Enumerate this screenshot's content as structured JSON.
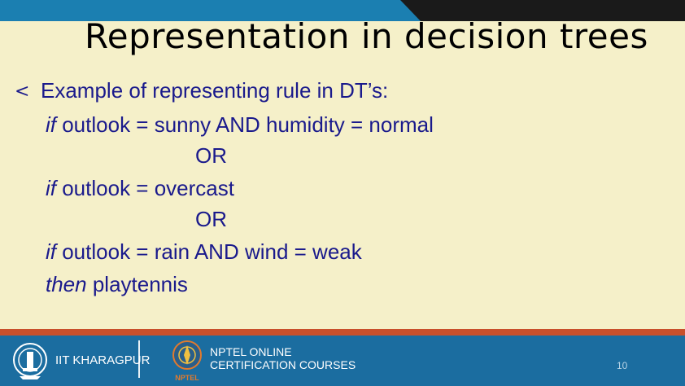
{
  "slide": {
    "title": "Representation in decision trees",
    "bullet_symbol": "<",
    "intro": "Example of representing rule in DT’s:",
    "lines": [
      {
        "prefix": "if",
        "text": " outlook = sunny AND humidity = normal"
      },
      {
        "prefix": "",
        "text": "OR"
      },
      {
        "prefix": "if",
        "text": " outlook = overcast"
      },
      {
        "prefix": "",
        "text": "OR"
      },
      {
        "prefix": "if",
        "text": " outlook = rain  AND wind = weak"
      },
      {
        "prefix": "then",
        "text": " playtennis"
      }
    ]
  },
  "footer": {
    "institute": "IIT KHARAGPUR",
    "nptel_line1": "NPTEL ONLINE",
    "nptel_line2": "CERTIFICATION COURSES",
    "nptel_badge": "NPTEL",
    "page_number": "10"
  },
  "colors": {
    "background": "#f5f0c9",
    "text_blue": "#1a1a8c",
    "footer_blue": "#1b6da0",
    "accent_orange": "#c8502c",
    "top_dark": "#1a1a1a"
  }
}
